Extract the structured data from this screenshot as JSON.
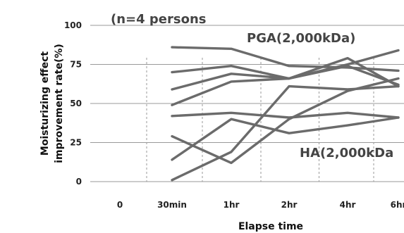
{
  "chart_data": {
    "type": "line",
    "categories": [
      "0",
      "30min",
      "1hr",
      "2hr",
      "4hr",
      "6hr"
    ],
    "xlabel": "Elapse time",
    "ylabel_lines": [
      "Moisturizing effect",
      "improvement rate(%)"
    ],
    "yticks": [
      "0",
      "25",
      "50",
      "75",
      "100"
    ],
    "ylim": [
      0,
      100
    ],
    "grid": true,
    "annotations": [
      {
        "name": "sample-size-note",
        "text": "(n=4 persons"
      },
      {
        "name": "pga-group-label",
        "text": "PGA(2,000kDa)"
      },
      {
        "name": "ha-group-label",
        "text": "HA(2,000kDa"
      }
    ],
    "series": [
      {
        "values": [
          null,
          86,
          85,
          74,
          73,
          71
        ]
      },
      {
        "values": [
          null,
          70,
          74,
          66,
          74,
          62
        ]
      },
      {
        "values": [
          null,
          59,
          69,
          66,
          79,
          61
        ]
      },
      {
        "values": [
          null,
          49,
          64,
          66,
          75,
          84
        ]
      },
      {
        "values": [
          null,
          42,
          44,
          41,
          44,
          41
        ]
      },
      {
        "values": [
          null,
          29,
          12,
          40,
          58,
          66
        ]
      },
      {
        "values": [
          null,
          14,
          40,
          31,
          36,
          41
        ]
      },
      {
        "values": [
          null,
          1,
          19,
          61,
          59,
          61
        ]
      }
    ]
  }
}
